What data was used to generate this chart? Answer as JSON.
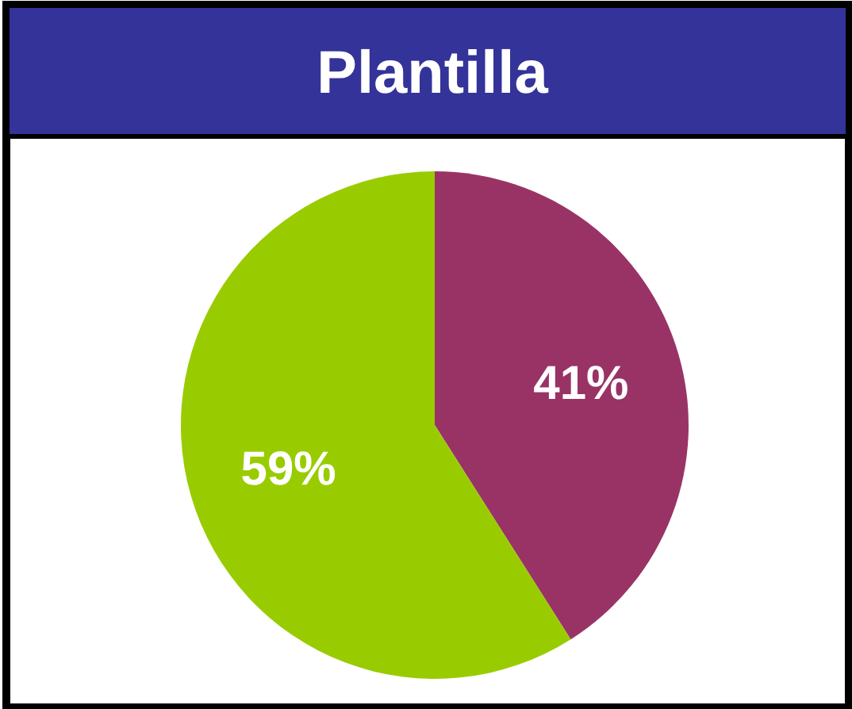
{
  "chart_data": {
    "type": "pie",
    "title": "Plantilla",
    "categories": [
      null,
      null
    ],
    "values": [
      41,
      59
    ],
    "colors": [
      "#993366",
      "#99cc00"
    ],
    "value_labels": [
      "41%",
      "59%"
    ]
  }
}
